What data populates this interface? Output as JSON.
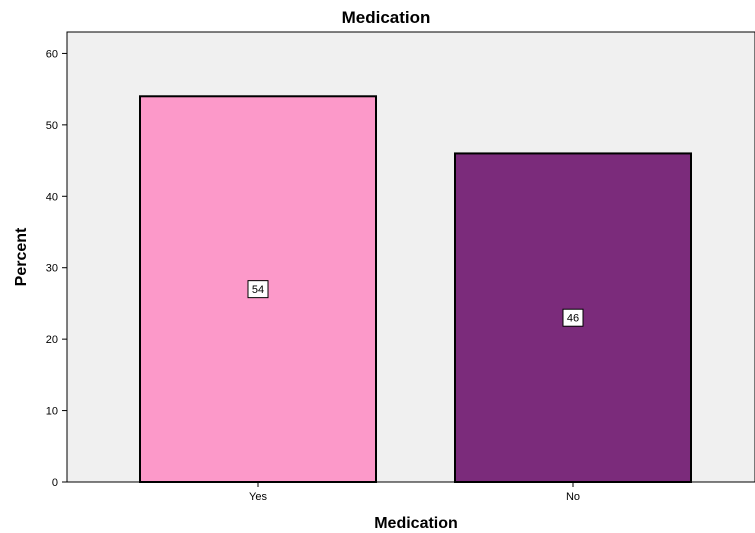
{
  "chart_data": {
    "type": "bar",
    "title": "Medication",
    "xlabel": "Medication",
    "ylabel": "Percent",
    "categories": [
      "Yes",
      "No"
    ],
    "values": [
      54,
      46
    ],
    "data_labels": [
      "54",
      "46"
    ],
    "ylim": [
      0,
      63
    ],
    "yticks": [
      0,
      10,
      20,
      30,
      40,
      50,
      60
    ],
    "grid": false,
    "legend": "none",
    "colors": {
      "bars": [
        "#fc99c9",
        "#7b2b7b"
      ],
      "plot_background": "#f0f0f0",
      "bar_stroke": "#000000"
    }
  }
}
